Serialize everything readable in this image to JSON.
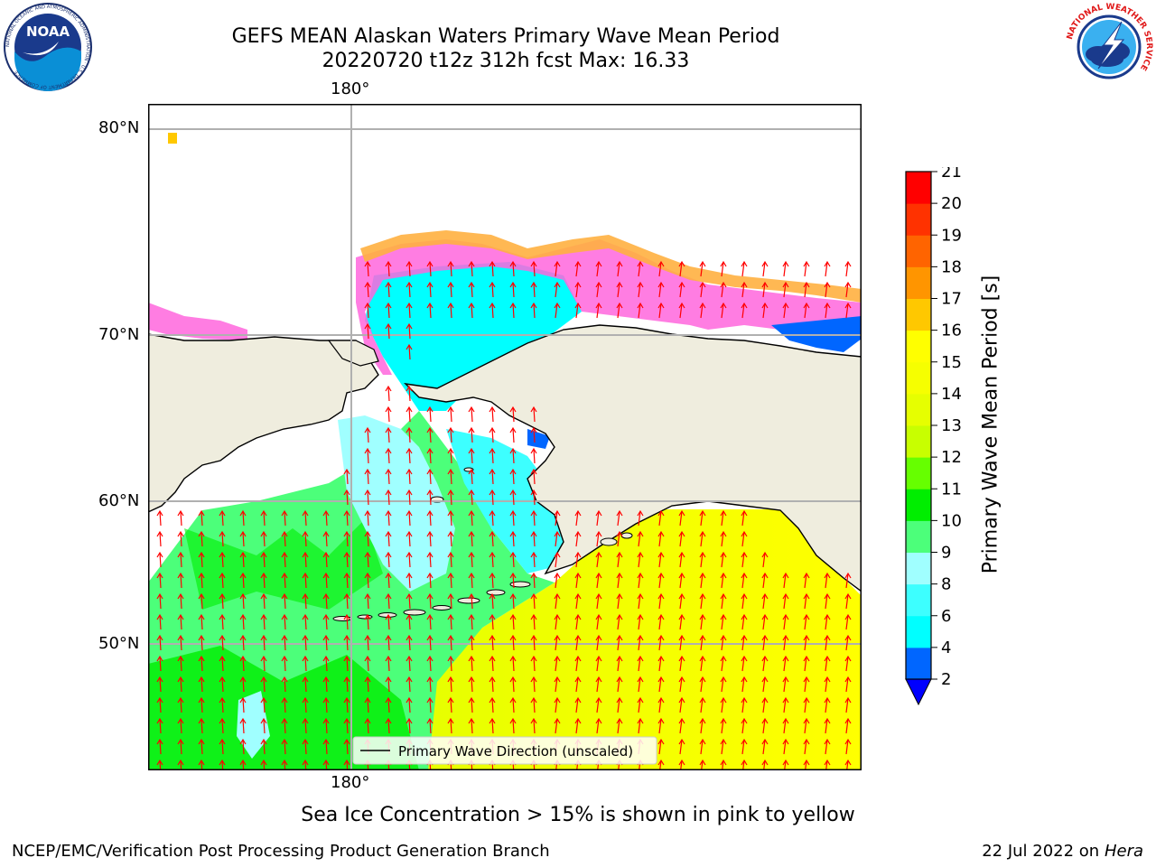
{
  "title": {
    "line1": "GEFS MEAN Alaskan Waters Primary Wave Mean Period",
    "line2": "20220720 t12z 312h fcst   Max: 16.33"
  },
  "logos": {
    "noaa_text": "NOAA",
    "noaa_ring": "NATIONAL OCEANIC AND ATMOSPHERIC ADMINISTRATION · U.S. DEPARTMENT OF COMMERCE",
    "nws_ring": "NATIONAL WEATHER SERVICE"
  },
  "map": {
    "lat_labels": [
      "80°N",
      "70°N",
      "60°N",
      "50°N"
    ],
    "lon_label_top": "180°",
    "lon_label_bottom": "180°",
    "legend_label": "Primary Wave Direction (unscaled)",
    "arrow_color": "#ff0000",
    "land_color": "#efedde"
  },
  "colorbar": {
    "title": "Primary Wave Mean Period [s]",
    "levels": [
      2,
      4,
      6,
      8,
      9,
      10,
      11,
      12,
      13,
      14,
      15,
      16,
      17,
      18,
      19,
      20,
      21
    ],
    "colors": [
      "#0066ff",
      "#00ffff",
      "#3dffff",
      "#a0ffff",
      "#4cff7a",
      "#00ee00",
      "#66ff00",
      "#c8ff00",
      "#e6ff00",
      "#f6ff00",
      "#ffff00",
      "#ffc800",
      "#ff9500",
      "#ff6400",
      "#ff3200",
      "#ff0000"
    ],
    "under_color": "#0000ff"
  },
  "notes": {
    "ice": "Sea Ice Concentration > 15% is shown in pink to yellow"
  },
  "footer": {
    "left": "NCEP/EMC/Verification Post Processing Product Generation Branch",
    "date": "22 Jul 2022 on ",
    "machine": "Hera"
  }
}
